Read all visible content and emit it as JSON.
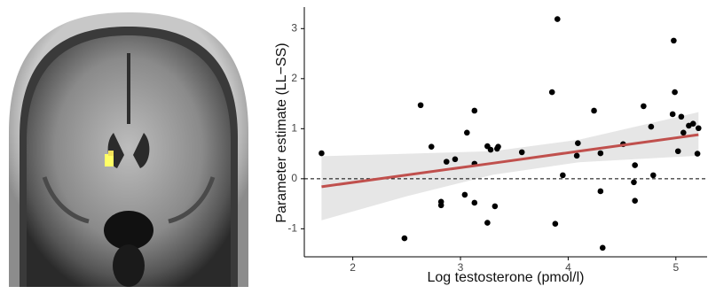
{
  "chart_data": {
    "type": "scatter",
    "x_label": "Log testosterone (pmol/l)",
    "y_label": "Parameter estimate (LL−SS)",
    "xlim": [
      1.55,
      5.29
    ],
    "ylim": [
      -1.56,
      3.43
    ],
    "xticks": [
      2,
      3,
      4,
      5
    ],
    "yticks": [
      -1,
      0,
      1,
      2,
      3
    ],
    "grid": false,
    "reference_line": 0,
    "point_color": "#000000",
    "line_color": "#c0504d",
    "band_color": "#e6e6e6",
    "x": [
      1.71,
      2.63,
      2.73,
      2.48,
      2.82,
      2.82,
      2.87,
      2.95,
      3.13,
      3.06,
      3.13,
      3.04,
      3.13,
      3.25,
      3.25,
      3.28,
      3.32,
      3.34,
      3.35,
      3.57,
      3.85,
      3.9,
      3.88,
      3.95,
      4.09,
      4.08,
      4.24,
      4.3,
      4.3,
      4.32,
      4.51,
      4.62,
      4.61,
      4.62,
      4.7,
      4.77,
      4.79,
      4.97,
      4.98,
      4.99,
      5.02,
      5.05,
      5.07,
      5.12,
      5.16,
      5.2,
      5.21
    ],
    "y": [
      0.51,
      1.47,
      0.64,
      -1.19,
      -0.46,
      -0.53,
      0.34,
      0.39,
      0.3,
      0.92,
      1.36,
      -0.32,
      -0.48,
      -0.88,
      0.65,
      0.58,
      -0.55,
      0.6,
      0.64,
      0.53,
      1.73,
      3.19,
      -0.9,
      0.07,
      0.71,
      0.46,
      1.36,
      0.51,
      -0.25,
      -1.38,
      0.69,
      0.27,
      -0.07,
      -0.44,
      1.45,
      1.04,
      0.07,
      1.29,
      2.76,
      1.73,
      0.55,
      1.24,
      0.92,
      1.06,
      1.1,
      0.5,
      1.01
    ],
    "fit": {
      "x": [
        1.71,
        2.5,
        3.3,
        4.1,
        5.21
      ],
      "values": [
        -0.16,
        0.075,
        0.31,
        0.55,
        0.88
      ],
      "lower": [
        -0.83,
        -0.35,
        0.08,
        0.33,
        0.46
      ],
      "upper": [
        0.45,
        0.5,
        0.55,
        0.78,
        1.33
      ]
    }
  }
}
